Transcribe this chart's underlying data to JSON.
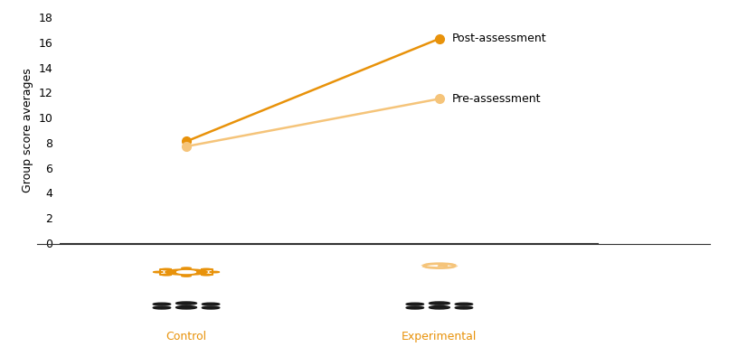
{
  "x_labels": [
    "Control",
    "Experimental"
  ],
  "x_positions": [
    0.3,
    0.7
  ],
  "post_assessment": [
    8.1,
    16.3
  ],
  "pre_assessment": [
    7.7,
    11.5
  ],
  "post_color": "#E8920A",
  "pre_color": "#F5C47A",
  "ylabel": "Group score averages",
  "ylim": [
    0,
    18
  ],
  "yticks": [
    0,
    2,
    4,
    6,
    8,
    10,
    12,
    14,
    16,
    18
  ],
  "post_label": "Post-assessment",
  "pre_label": "Pre-assessment",
  "marker_size": 7,
  "line_width": 1.8,
  "label_fontsize": 9,
  "tick_fontsize": 9,
  "ylabel_fontsize": 9,
  "xlabel_color": "#555555",
  "icon_orange": "#E8920A",
  "icon_light_orange": "#F5C47A",
  "icon_black": "#1A1A1A"
}
